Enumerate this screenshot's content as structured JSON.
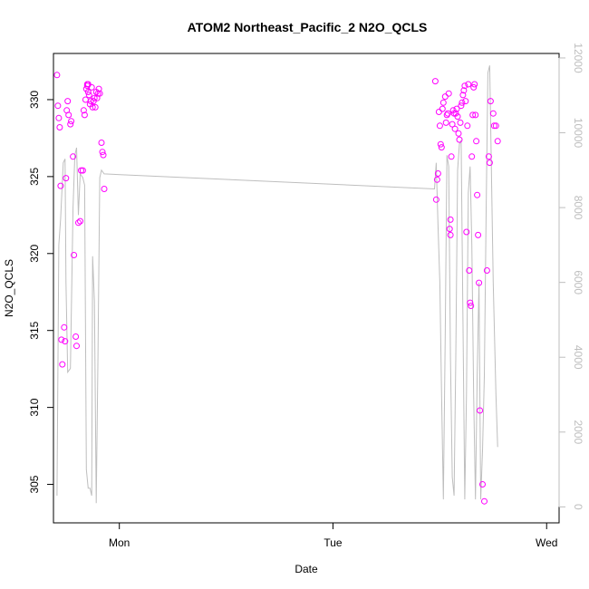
{
  "chart_data": {
    "type": "scatter",
    "title": "ATOM2 Northeast_Pacific_2 N2O_QCLS",
    "xlabel": "Date",
    "ylabel": "N2O_QCLS",
    "x_ticks": [
      {
        "label": "Mon",
        "value": 24
      },
      {
        "label": "Tue",
        "value": 48
      },
      {
        "label": "Wed",
        "value": 72
      }
    ],
    "xlim": [
      16.6,
      73.4
    ],
    "ylim": [
      302.5,
      333
    ],
    "y_ticks": [
      305,
      310,
      315,
      320,
      325,
      330
    ],
    "y2_label": "",
    "y2lim": [
      -427,
      12120
    ],
    "y2_ticks": [
      0,
      2000,
      4000,
      6000,
      8000,
      10000,
      12000
    ],
    "grid": false,
    "colors": {
      "points": "#ff00ff",
      "line": "#bebebe",
      "axis": "#000000",
      "right_axis": "#bebebe"
    },
    "series": [
      {
        "kind": "points",
        "axis": "left",
        "points": [
          [
            17.0,
            331.6
          ],
          [
            17.1,
            329.6
          ],
          [
            17.2,
            328.8
          ],
          [
            17.3,
            328.2
          ],
          [
            17.4,
            324.4
          ],
          [
            17.5,
            314.4
          ],
          [
            17.6,
            312.8
          ],
          [
            17.8,
            315.2
          ],
          [
            17.9,
            314.3
          ],
          [
            18.0,
            324.9
          ],
          [
            18.1,
            329.3
          ],
          [
            18.2,
            329.9
          ],
          [
            18.3,
            329.0
          ],
          [
            18.5,
            328.4
          ],
          [
            18.6,
            328.6
          ],
          [
            18.8,
            326.3
          ],
          [
            18.9,
            319.9
          ],
          [
            19.1,
            314.6
          ],
          [
            19.2,
            314.0
          ],
          [
            19.4,
            322.0
          ],
          [
            19.6,
            322.1
          ],
          [
            19.7,
            325.4
          ],
          [
            19.9,
            325.4
          ],
          [
            20.0,
            329.3
          ],
          [
            20.1,
            329.0
          ],
          [
            20.2,
            330.0
          ],
          [
            20.3,
            330.7
          ],
          [
            20.4,
            330.9
          ],
          [
            20.4,
            331.0
          ],
          [
            20.5,
            330.5
          ],
          [
            20.5,
            331.0
          ],
          [
            20.6,
            330.3
          ],
          [
            20.7,
            329.7
          ],
          [
            20.8,
            329.9
          ],
          [
            20.9,
            330.8
          ],
          [
            21.0,
            329.5
          ],
          [
            21.1,
            329.9
          ],
          [
            21.2,
            330.1
          ],
          [
            21.3,
            329.5
          ],
          [
            21.4,
            330.5
          ],
          [
            21.5,
            330.1
          ],
          [
            21.6,
            330.4
          ],
          [
            21.7,
            330.7
          ],
          [
            21.8,
            330.4
          ],
          [
            22.0,
            327.2
          ],
          [
            22.1,
            326.6
          ],
          [
            22.2,
            326.4
          ],
          [
            22.3,
            324.2
          ],
          [
            59.5,
            331.2
          ],
          [
            59.6,
            323.5
          ],
          [
            59.7,
            324.8
          ],
          [
            59.8,
            325.2
          ],
          [
            59.9,
            329.2
          ],
          [
            60.0,
            328.3
          ],
          [
            60.1,
            327.1
          ],
          [
            60.2,
            326.9
          ],
          [
            60.3,
            329.4
          ],
          [
            60.4,
            329.8
          ],
          [
            60.6,
            330.2
          ],
          [
            60.7,
            328.5
          ],
          [
            60.8,
            329.0
          ],
          [
            60.9,
            329.1
          ],
          [
            61.0,
            330.4
          ],
          [
            61.1,
            321.6
          ],
          [
            61.2,
            321.2
          ],
          [
            61.2,
            322.2
          ],
          [
            61.3,
            326.3
          ],
          [
            61.4,
            328.4
          ],
          [
            61.5,
            329.3
          ],
          [
            61.6,
            329.1
          ],
          [
            61.7,
            328.1
          ],
          [
            61.8,
            329.1
          ],
          [
            61.9,
            329.4
          ],
          [
            62.0,
            328.9
          ],
          [
            62.1,
            327.8
          ],
          [
            62.2,
            327.4
          ],
          [
            62.3,
            328.5
          ],
          [
            62.4,
            329.6
          ],
          [
            62.5,
            329.8
          ],
          [
            62.6,
            330.3
          ],
          [
            62.7,
            330.6
          ],
          [
            62.8,
            330.9
          ],
          [
            62.9,
            329.9
          ],
          [
            63.0,
            321.4
          ],
          [
            63.1,
            328.3
          ],
          [
            63.2,
            331.0
          ],
          [
            63.3,
            318.9
          ],
          [
            63.4,
            316.8
          ],
          [
            63.5,
            316.6
          ],
          [
            63.6,
            326.3
          ],
          [
            63.7,
            329.0
          ],
          [
            63.8,
            330.8
          ],
          [
            63.9,
            331.0
          ],
          [
            64.0,
            329.0
          ],
          [
            64.1,
            327.3
          ],
          [
            64.2,
            323.8
          ],
          [
            64.3,
            321.2
          ],
          [
            64.4,
            318.1
          ],
          [
            64.5,
            309.8
          ],
          [
            64.8,
            305.0
          ],
          [
            65.0,
            303.9
          ],
          [
            65.3,
            318.9
          ],
          [
            65.5,
            326.3
          ],
          [
            65.6,
            325.9
          ],
          [
            65.7,
            329.9
          ],
          [
            66.0,
            329.1
          ],
          [
            66.1,
            328.3
          ],
          [
            66.3,
            328.3
          ],
          [
            66.5,
            327.3
          ]
        ]
      },
      {
        "kind": "line",
        "axis": "right",
        "points": [
          [
            17.0,
            300
          ],
          [
            17.2,
            7000
          ],
          [
            17.4,
            7700
          ],
          [
            17.7,
            9200
          ],
          [
            17.9,
            9300
          ],
          [
            18.0,
            6000
          ],
          [
            18.2,
            3600
          ],
          [
            18.5,
            3700
          ],
          [
            18.8,
            8000
          ],
          [
            19.0,
            9400
          ],
          [
            19.2,
            9600
          ],
          [
            19.4,
            7800
          ],
          [
            19.6,
            8900
          ],
          [
            19.9,
            8800
          ],
          [
            20.1,
            8600
          ],
          [
            20.3,
            1000
          ],
          [
            20.5,
            500
          ],
          [
            20.7,
            500
          ],
          [
            20.9,
            300
          ],
          [
            21.0,
            6700
          ],
          [
            21.2,
            5500
          ],
          [
            21.4,
            100
          ],
          [
            21.6,
            4000
          ],
          [
            21.8,
            8800
          ],
          [
            22.0,
            9000
          ],
          [
            22.3,
            8900
          ],
          [
            59.4,
            8500
          ],
          [
            59.6,
            9200
          ],
          [
            59.8,
            7500
          ],
          [
            60.0,
            6000
          ],
          [
            60.2,
            3000
          ],
          [
            60.4,
            200
          ],
          [
            60.6,
            4500
          ],
          [
            60.8,
            9400
          ],
          [
            61.0,
            9100
          ],
          [
            61.2,
            4000
          ],
          [
            61.4,
            800
          ],
          [
            61.6,
            300
          ],
          [
            61.8,
            4000
          ],
          [
            62.0,
            9000
          ],
          [
            62.2,
            9700
          ],
          [
            62.4,
            9800
          ],
          [
            62.6,
            5000
          ],
          [
            62.8,
            200
          ],
          [
            63.0,
            3000
          ],
          [
            63.2,
            8400
          ],
          [
            63.4,
            9100
          ],
          [
            63.6,
            7000
          ],
          [
            63.8,
            3000
          ],
          [
            64.0,
            200
          ],
          [
            64.2,
            3500
          ],
          [
            64.4,
            6000
          ],
          [
            64.6,
            200
          ],
          [
            64.8,
            1500
          ],
          [
            65.0,
            3500
          ],
          [
            65.2,
            7700
          ],
          [
            65.4,
            11600
          ],
          [
            65.6,
            11800
          ],
          [
            65.8,
            9000
          ],
          [
            66.0,
            6000
          ],
          [
            66.3,
            3000
          ],
          [
            66.5,
            1600
          ]
        ]
      }
    ]
  }
}
